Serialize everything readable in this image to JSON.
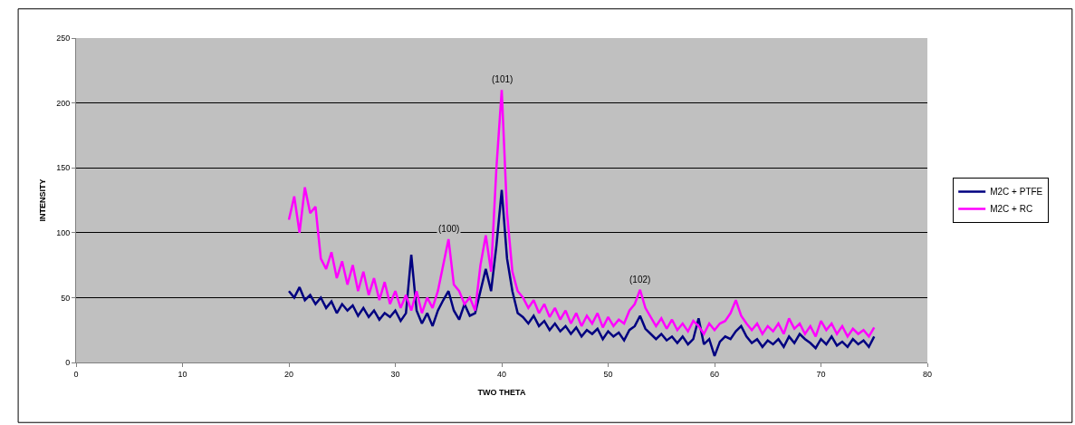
{
  "chart_data": {
    "type": "line",
    "xlabel": "TWO THETA",
    "ylabel": "INTENSITY",
    "x": [
      20,
      20.5,
      21,
      21.5,
      22,
      22.5,
      23,
      23.5,
      24,
      24.5,
      25,
      25.5,
      26,
      26.5,
      27,
      27.5,
      28,
      28.5,
      29,
      29.5,
      30,
      30.5,
      31,
      31.5,
      32,
      32.5,
      33,
      33.5,
      34,
      34.5,
      35,
      35.5,
      36,
      36.5,
      37,
      37.5,
      38,
      38.5,
      39,
      39.5,
      40,
      40.5,
      41,
      41.5,
      42,
      42.5,
      43,
      43.5,
      44,
      44.5,
      45,
      45.5,
      46,
      46.5,
      47,
      47.5,
      48,
      48.5,
      49,
      49.5,
      50,
      50.5,
      51,
      51.5,
      52,
      52.5,
      53,
      53.5,
      54,
      54.5,
      55,
      55.5,
      56,
      56.5,
      57,
      57.5,
      58,
      58.5,
      59,
      59.5,
      60,
      60.5,
      61,
      61.5,
      62,
      62.5,
      63,
      63.5,
      64,
      64.5,
      65,
      65.5,
      66,
      66.5,
      67,
      67.5,
      68,
      68.5,
      69,
      69.5,
      70,
      70.5,
      71,
      71.5,
      72,
      72.5,
      73,
      73.5,
      74,
      74.5,
      75
    ],
    "series": [
      {
        "name": "M2C + PTFE",
        "color": "#000080",
        "values": [
          55,
          50,
          58,
          48,
          52,
          45,
          50,
          42,
          47,
          38,
          45,
          40,
          44,
          36,
          42,
          35,
          40,
          33,
          38,
          35,
          40,
          32,
          38,
          83,
          40,
          30,
          38,
          28,
          40,
          48,
          55,
          40,
          33,
          45,
          36,
          38,
          55,
          72,
          55,
          90,
          133,
          80,
          55,
          38,
          35,
          30,
          36,
          28,
          32,
          25,
          30,
          24,
          28,
          22,
          27,
          20,
          25,
          22,
          26,
          18,
          24,
          20,
          23,
          17,
          25,
          28,
          36,
          26,
          22,
          18,
          22,
          17,
          20,
          15,
          20,
          14,
          18,
          34,
          14,
          18,
          5,
          16,
          20,
          18,
          24,
          28,
          20,
          15,
          18,
          12,
          17,
          14,
          18,
          12,
          20,
          15,
          22,
          18,
          15,
          11,
          18,
          14,
          20,
          13,
          16,
          12,
          18,
          14,
          17,
          12,
          20
        ]
      },
      {
        "name": "M2C + RC",
        "color": "#ff00ff",
        "values": [
          110,
          128,
          100,
          135,
          115,
          120,
          80,
          72,
          85,
          65,
          78,
          60,
          75,
          55,
          70,
          52,
          65,
          48,
          62,
          45,
          55,
          42,
          52,
          40,
          55,
          38,
          50,
          42,
          55,
          75,
          95,
          60,
          55,
          45,
          50,
          40,
          75,
          98,
          70,
          150,
          210,
          115,
          70,
          55,
          50,
          42,
          48,
          38,
          45,
          35,
          42,
          33,
          40,
          30,
          38,
          28,
          36,
          30,
          38,
          27,
          35,
          28,
          33,
          30,
          40,
          45,
          56,
          42,
          35,
          28,
          34,
          26,
          33,
          25,
          30,
          24,
          32,
          28,
          22,
          30,
          25,
          30,
          32,
          38,
          48,
          36,
          30,
          25,
          30,
          22,
          28,
          24,
          30,
          22,
          34,
          26,
          30,
          22,
          28,
          20,
          32,
          25,
          30,
          22,
          28,
          20,
          26,
          22,
          25,
          20,
          27
        ]
      }
    ],
    "xlim": [
      0,
      80
    ],
    "xticks": [
      0,
      10,
      20,
      30,
      40,
      50,
      60,
      70,
      80
    ],
    "ylim": [
      0,
      250
    ],
    "yticks": [
      0,
      50,
      100,
      150,
      200,
      250
    ],
    "grid": "y",
    "legend": "right",
    "marker": "none",
    "line_style": "solid",
    "annotations": [
      {
        "text": "(100)",
        "x": 35,
        "y": 95
      },
      {
        "text": "(101)",
        "x": 40,
        "y": 210
      },
      {
        "text": "(102)",
        "x": 53,
        "y": 56
      }
    ]
  }
}
